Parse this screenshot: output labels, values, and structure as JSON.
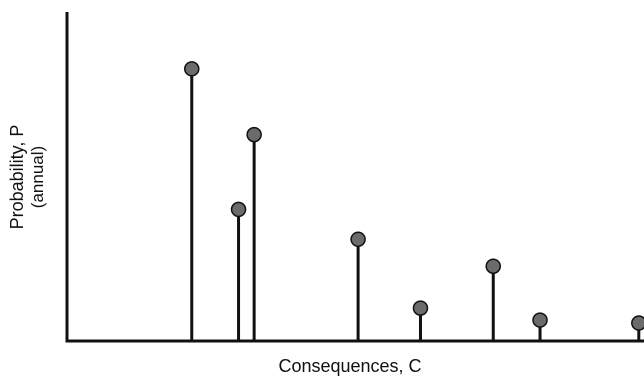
{
  "chart_data": {
    "type": "stem",
    "xlabel": "Consequences, C",
    "ylabel_line1": "Probability, P",
    "ylabel_line2": "(annual)",
    "grid": false,
    "legend": "none",
    "points": [
      {
        "x": 0.24,
        "y": 0.91
      },
      {
        "x": 0.33,
        "y": 0.44
      },
      {
        "x": 0.36,
        "y": 0.69
      },
      {
        "x": 0.56,
        "y": 0.34
      },
      {
        "x": 0.68,
        "y": 0.11
      },
      {
        "x": 0.82,
        "y": 0.25
      },
      {
        "x": 0.91,
        "y": 0.07
      },
      {
        "x": 1.1,
        "y": 0.06
      }
    ],
    "xlim": [
      0.0,
      1.11
    ],
    "ylim": [
      0.0,
      1.1
    ]
  }
}
